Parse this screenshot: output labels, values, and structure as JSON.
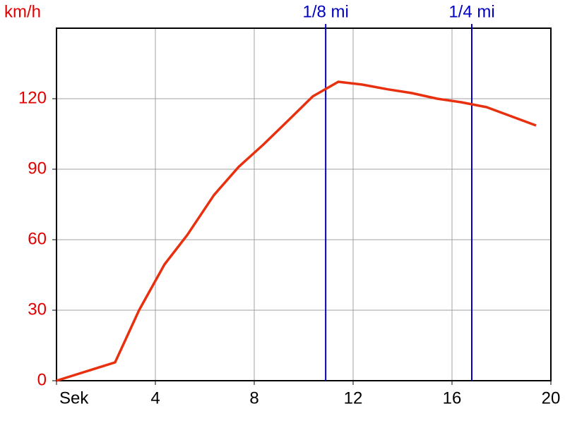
{
  "chart_data": {
    "type": "line",
    "y_label": "km/h",
    "x": [
      0,
      2.37,
      3.34,
      4.37,
      5.29,
      6.37,
      7.37,
      8.37,
      9.37,
      10.37,
      11.4,
      12.37,
      13.4,
      14.37,
      15.4,
      16.37,
      17.4,
      18.4,
      19.4
    ],
    "series": [
      {
        "color": "#e8300f",
        "values": [
          0,
          7.8,
          30,
          49.5,
          62,
          79,
          91,
          100.5,
          110.7,
          121,
          127.2,
          126,
          124,
          122.4,
          120,
          118.5,
          116.4,
          112.5,
          108.6
        ]
      }
    ],
    "xlim": [
      0,
      20
    ],
    "xticks": [
      {
        "value": 0,
        "label": "Sek"
      },
      4,
      8,
      12,
      16,
      20
    ],
    "ylim": [
      0,
      150
    ],
    "yticks": [
      0,
      30,
      60,
      90,
      120
    ],
    "grid": true,
    "axis_label_color": "#e00000",
    "markers": [
      {
        "label": "1/8 mi",
        "x": 10.89
      },
      {
        "label": "1/4 mi",
        "x": 16.8
      }
    ],
    "marker_color": "#0000c0"
  }
}
